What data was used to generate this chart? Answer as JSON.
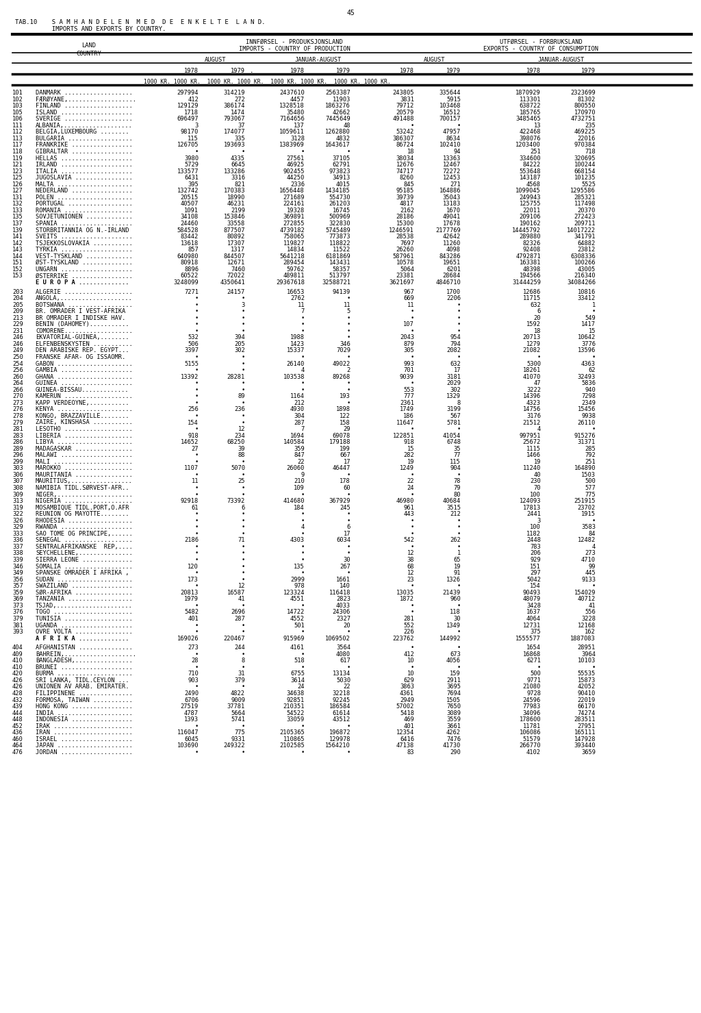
{
  "page_number": "45",
  "title_line1": "TAB.10    S A M H A N D E L E N  M E D  D E  E N K E L T E  L A N D.",
  "title_line2": "          IMPORTS AND EXPORTS BY COUNTRY.",
  "header_left1": "INNFØRSEL - PRODUKSJONSLAND",
  "header_left2": "IMPORTS - COUNTRY OF PRODUCTION",
  "header_right1": "UTFØRSEL - FORBRUKSLAND",
  "header_right2": "EXPORTS - COUNTRY OF CONSUMPTION",
  "land_label": "LAND",
  "country_label": "COUNTRY",
  "col_headers": [
    "AUGUST",
    "JANUAR-AUGUST",
    "AUGUST",
    "JANUAR-AUGUST"
  ],
  "year_headers": [
    "1978",
    "1979",
    ".",
    "1978",
    "1979",
    "1978",
    "1979",
    "1978",
    "1979"
  ],
  "unit_label": "1000 KR. 1000 KR.  1000 KR. 1000 KR.  1000 KR. 1000 KR.  1000 KR. 1000 KR.",
  "rows": [
    [
      "101",
      "DANMARK ...................",
      "297994",
      "314219",
      "2437610",
      "2563387",
      "243805",
      "335644",
      "1870929",
      "2323699"
    ],
    [
      "102",
      "FÆRØYANE,...................",
      "412",
      "272",
      "4457",
      "11903",
      "3831",
      "5915",
      "113301",
      "81302"
    ],
    [
      "103",
      "FINLAND ...................",
      "129129",
      "386174",
      "1328518",
      "1863276",
      "79712",
      "103468",
      "638722",
      "800550"
    ],
    [
      "105",
      "ISLAND ....................",
      "1718",
      "1474",
      "35480",
      "42662",
      "20579",
      "16512",
      "185765",
      "170970"
    ],
    [
      "106",
      "SVERIGE ...................",
      "696497",
      "793067",
      "7164656",
      "7445649",
      "491488",
      "700157",
      "3485465",
      "4732751"
    ],
    [
      "111",
      "ALBANIA,...................",
      "3",
      "37",
      "137",
      "48",
      "•",
      "•",
      "13",
      "235"
    ],
    [
      "112",
      "BELGIA,LUXEMBOURG ........",
      "98170",
      "174077",
      "1059611",
      "1262880",
      "53242",
      "47957",
      "422468",
      "469225"
    ],
    [
      "113",
      "BULGARIA ..................",
      "115",
      "335",
      "3128",
      "4832",
      "386307",
      "8634",
      "398076",
      "22016"
    ],
    [
      "117",
      "FRANKRIKE .................",
      "126705",
      "193693",
      "1383969",
      "1643617",
      "86724",
      "102410",
      "1203400",
      "970384"
    ],
    [
      "118",
      "GIBRALTAR .................",
      "•",
      "•",
      "•",
      "•",
      "18",
      "94",
      "251",
      "718"
    ],
    [
      "119",
      "HELLAS ....................",
      "3980",
      "4335",
      "27561",
      "37105",
      "38034",
      "13363",
      "334600",
      "320695"
    ],
    [
      "121",
      "IRLAND ....................",
      "5729",
      "6645",
      "46925",
      "62791",
      "12676",
      "12467",
      "84222",
      "100244"
    ],
    [
      "123",
      "ITALIA ....................",
      "133577",
      "133286",
      "902455",
      "973823",
      "74717",
      "72272",
      "553648",
      "668154"
    ],
    [
      "125",
      "JUGOSLAVIA ................",
      "6431",
      "3316",
      "44250",
      "34913",
      "8260",
      "12453",
      "143187",
      "101235"
    ],
    [
      "126",
      "MALTA .....................",
      "395",
      "821",
      "2336",
      "4015",
      "845",
      "271",
      "4568",
      "5525"
    ],
    [
      "127",
      "NEDERLAND .................",
      "132742",
      "170383",
      "1656448",
      "1434185",
      "95185",
      "164886",
      "1099045",
      "1295586"
    ],
    [
      "131",
      "POLEN .....................",
      "20515",
      "18990",
      "271689",
      "554730",
      "39739",
      "35043",
      "249943",
      "285321"
    ],
    [
      "132",
      "PORTUGAL ..................",
      "40507",
      "46231",
      "224161",
      "261203",
      "4817",
      "13183",
      "125755",
      "117498"
    ],
    [
      "133",
      "ROMANIA ...................",
      "1091",
      "2199",
      "19328",
      "16745",
      "2162",
      "1670",
      "22011",
      "20370"
    ],
    [
      "135",
      "SOVJETUNIONEN .............",
      "34108",
      "153846",
      "369891",
      "500969",
      "28186",
      "49041",
      "209106",
      "272423"
    ],
    [
      "137",
      "SPANIA ....................",
      "24460",
      "33558",
      "272855",
      "322830",
      "15300",
      "17678",
      "190162",
      "209711"
    ],
    [
      "139",
      "STORBRITANNIA OG N.-IRLAND",
      "584528",
      "877507",
      "4739182",
      "5745489",
      "1246591",
      "2177769",
      "14445792",
      "14017222"
    ],
    [
      "141",
      "SVEITS ....................",
      "83442",
      "80892",
      "758065",
      "773873",
      "28538",
      "42642",
      "289880",
      "341791"
    ],
    [
      "142",
      "TSJEKKOSLOVAKIA ...........",
      "13618",
      "17307",
      "119827",
      "118822",
      "7697",
      "11260",
      "82326",
      "64882"
    ],
    [
      "143",
      "TYRKIA ....................",
      "857",
      "1317",
      "14834",
      "11522",
      "26260",
      "4098",
      "92408",
      "23812"
    ],
    [
      "144",
      "VEST-TYSKLAND .............",
      "640980",
      "844507",
      "5641218",
      "6181869",
      "587961",
      "843286",
      "4792871",
      "6308336"
    ],
    [
      "151",
      "ØST-TYSKLAND ..............",
      "80918",
      "12671",
      "289454",
      "143431",
      "10578",
      "19651",
      "163381",
      "100266"
    ],
    [
      "152",
      "UNGARN ....................",
      "8896",
      "7460",
      "59762",
      "58357",
      "5064",
      "6201",
      "48398",
      "43005"
    ],
    [
      "153",
      "ØSTERRIKE .................",
      "60522",
      "72022",
      "489811",
      "513797",
      "23381",
      "28684",
      "194566",
      "216340"
    ],
    [
      "",
      "E U R O P A ..............",
      "3248099",
      "4350641",
      "29367618",
      "32588721",
      "3621697",
      "4846710",
      "31444259",
      "34084266"
    ],
    [
      "203",
      "ALGERIE ...................",
      "7271",
      "24157",
      "16653",
      "94139",
      "967",
      "1700",
      "12686",
      "10816"
    ],
    [
      "204",
      "ANGOLA,....................",
      "•",
      "•",
      "2762",
      "•",
      "669",
      "2206",
      "11715",
      "33412"
    ],
    [
      "205",
      "BOTSWANA ..................",
      "•",
      "3",
      "11",
      "11",
      "11",
      "•",
      "632",
      "1"
    ],
    [
      "209",
      "BR. OMRADER I VEST-AFRIKA",
      "•",
      "•",
      "7",
      "5",
      "•",
      "•",
      "6",
      "•"
    ],
    [
      "213",
      "BR OMRADER I INDISKE HAV.",
      "•",
      "•",
      "•",
      "•",
      "•",
      "•",
      "20",
      "549"
    ],
    [
      "229",
      "BENIN (DAHOMEY)...........",
      "•",
      "•",
      "•",
      "•",
      "107",
      "•",
      "1592",
      "1417"
    ],
    [
      "231",
      "COMORENE...................",
      "•",
      "•",
      "•",
      "•",
      "•",
      "•",
      "18",
      "15"
    ],
    [
      "246",
      "EKVATORIAL-GUINEA,........",
      "532",
      "394",
      "1988",
      "•",
      "2043",
      "954",
      "20713",
      "10642"
    ],
    [
      "246",
      "ELFENBENSKYSTEN ...........",
      "506",
      "205",
      "1423",
      "346",
      "879",
      "794",
      "1279",
      "3776"
    ],
    [
      "249",
      "DEN ARABISKE REP. EGYPT...",
      "3397",
      "302",
      "15337",
      "7029",
      "305",
      "2082",
      "21082",
      "13596"
    ],
    [
      "250",
      "FRANSKE AFAR- OG ISSAOMR.",
      "•",
      "•",
      "•",
      "•",
      "•",
      "•",
      "•",
      "•"
    ],
    [
      "254",
      "GABON .....................",
      "5155",
      "•",
      "26140",
      "49022",
      "993",
      "632",
      "5300",
      "4363"
    ],
    [
      "256",
      "GAMBIA ....................",
      "•",
      "•",
      "4",
      "2",
      "701",
      "17",
      "18261",
      "62"
    ],
    [
      "260",
      "GHANA .....................",
      "13392",
      "28281",
      "103538",
      "89268",
      "9039",
      "3181",
      "41070",
      "32493"
    ],
    [
      "264",
      "GUINEA ....................",
      "•",
      "•",
      "•",
      "•",
      "•",
      "2029",
      "47",
      "5836"
    ],
    [
      "266",
      "GUINEA-BISSAU.............",
      "•",
      "•",
      "•",
      "•",
      "553",
      "302",
      "3222",
      "940"
    ],
    [
      "270",
      "KAMERUN ...................",
      "•",
      "89",
      "1164",
      "193",
      "777",
      "1329",
      "14396",
      "7298"
    ],
    [
      "273",
      "KAPP VERDEOYNE,...........",
      "•",
      "•",
      "212",
      "•",
      "2361",
      "8",
      "4323",
      "2349"
    ],
    [
      "276",
      "KENYA .....................",
      "256",
      "236",
      "4930",
      "1898",
      "1749",
      "3199",
      "14756",
      "15456"
    ],
    [
      "278",
      "KONGO, BRAZZAVILLE........",
      "•",
      "•",
      "304",
      "122",
      "186",
      "567",
      "3176",
      "9938"
    ],
    [
      "279",
      "ZAIRE, KINSHASA ...........",
      "154",
      "•",
      "287",
      "158",
      "11647",
      "5781",
      "21512",
      "26110"
    ],
    [
      "281",
      "LESOTHO ...................",
      "•",
      "12",
      "7",
      "29",
      "•",
      "•",
      "4",
      "•"
    ],
    [
      "283",
      "LIBERIA ...................",
      "918",
      "234",
      "1694",
      "69078",
      "122851",
      "41054",
      "997951",
      "915276"
    ],
    [
      "286",
      "LIBYA .....................",
      "14652",
      "68250",
      "140584",
      "179188",
      "918",
      "6748",
      "25672",
      "31371"
    ],
    [
      "289",
      "MADAGASKAR ................",
      "27",
      "39",
      "359",
      "199",
      "15",
      "35",
      "1115",
      "285"
    ],
    [
      "296",
      "MALAWI ....................",
      "•",
      "88",
      "847",
      "667",
      "282",
      "77",
      "1466",
      "792"
    ],
    [
      "299",
      "MALI ......................",
      "•",
      "•",
      "22",
      "17",
      "19",
      "115",
      "19",
      "251"
    ],
    [
      "303",
      "MAROKKO ...................",
      "1107",
      "5070",
      "26060",
      "46447",
      "1249",
      "904",
      "11240",
      "164890"
    ],
    [
      "306",
      "MAURITANIA ................",
      "•",
      "•",
      "9",
      "•",
      "•",
      "•",
      "40",
      "1503"
    ],
    [
      "307",
      "MAURITIUS,.................",
      "11",
      "25",
      "210",
      "178",
      "22",
      "78",
      "230",
      "500"
    ],
    [
      "308",
      "NAMIBIA TIDL.SØRVEST-AFR..",
      "•",
      "•",
      "109",
      "60",
      "24",
      "79",
      "70",
      "577"
    ],
    [
      "309",
      "NIGER,.....................",
      "•",
      "•",
      "•",
      "•",
      "•",
      "80",
      "100",
      "775"
    ],
    [
      "313",
      "NIGERIA ...................",
      "92918",
      "73392",
      "414680",
      "367929",
      "46980",
      "40684",
      "124093",
      "251915"
    ],
    [
      "319",
      "MOSAMBIQUE TIDL.PORT,O.AFR",
      "61",
      "6",
      "184",
      "245",
      "961",
      "3515",
      "17813",
      "23702"
    ],
    [
      "322",
      "REUNION OG MAYOTTE........",
      "•",
      "•",
      "•",
      "•",
      "443",
      "212",
      "2441",
      "1915"
    ],
    [
      "326",
      "RHODESIA ..................",
      "•",
      "•",
      "•",
      "•",
      "•",
      "•",
      "3",
      "•"
    ],
    [
      "329",
      "RWANDA ....................",
      "•",
      "•",
      "4",
      "6",
      "•",
      "•",
      "100",
      "3583"
    ],
    [
      "333",
      "SAO TOME OG PRINCIPE,......",
      "•",
      "•",
      "•",
      "17",
      "•",
      "•",
      "1182",
      "84"
    ],
    [
      "336",
      "SENEGAL ...................",
      "2186",
      "71",
      "4303",
      "6034",
      "542",
      "262",
      "2448",
      "12482"
    ],
    [
      "337",
      "SENTRALAFRIKANSKE  REP,....",
      "•",
      "•",
      "•",
      "•",
      "•",
      "•",
      "783",
      "4"
    ],
    [
      "338",
      "SEYCHELLENE,...............",
      "•",
      "•",
      "•",
      "•",
      "12",
      "1",
      "206",
      "273"
    ],
    [
      "339",
      "SIERRA LEONE ..............",
      "•",
      "•",
      "•",
      "30",
      "38",
      "65",
      "929",
      "4710"
    ],
    [
      "346",
      "SOMALIA ...................",
      "120",
      "•",
      "135",
      "267",
      "68",
      "19",
      "151",
      "99"
    ],
    [
      "349",
      "SPANSKE OMRADER I AFRIKA ,",
      "•",
      "•",
      "•",
      "•",
      "12",
      "91",
      "297",
      "445"
    ],
    [
      "356",
      "SUDAN .....................",
      "173",
      "•",
      "2999",
      "1661",
      "23",
      "1326",
      "5042",
      "9133"
    ],
    [
      "357",
      "SWAZILAND .................",
      "•",
      "12",
      "978",
      "140",
      "•",
      "•",
      "154",
      "•"
    ],
    [
      "359",
      "SØR-AFRIKA ................",
      "20813",
      "16587",
      "123324",
      "116418",
      "13035",
      "21439",
      "90493",
      "154029"
    ],
    [
      "369",
      "TANZANIA ..................",
      "1979",
      "41",
      "4551",
      "2823",
      "1872",
      "960",
      "48079",
      "40712"
    ],
    [
      "373",
      "TSJAD,.....................",
      "•",
      "•",
      "•",
      "4033",
      "•",
      "•",
      "3428",
      "41"
    ],
    [
      "376",
      "TOGO ......................",
      "5482",
      "2696",
      "14722",
      "24306",
      "•",
      "118",
      "1637",
      "556"
    ],
    [
      "379",
      "TUNISIA ...................",
      "401",
      "287",
      "4552",
      "2327",
      "281",
      "30",
      "4064",
      "3228"
    ],
    [
      "381",
      "UGANDA ....................",
      "•",
      "•",
      "501",
      "20",
      "552",
      "1349",
      "12731",
      "12168"
    ],
    [
      "393",
      "OVRE VOLTA ................",
      "•",
      "•",
      "•",
      "•",
      "226",
      "•",
      "375",
      "162"
    ],
    [
      "",
      "A F R I K A ..............",
      "169026",
      "220467",
      "915969",
      "1069502",
      "223762",
      "144992",
      "1555577",
      "1887083"
    ],
    [
      "404",
      "AFGHANISTAN ...............",
      "273",
      "244",
      "4161",
      "3564",
      "•",
      "•",
      "1654",
      "28951"
    ],
    [
      "409",
      "BAHREIN,....................",
      "•",
      "•",
      "•",
      "4080",
      "412",
      "673",
      "16868",
      "3964"
    ],
    [
      "410",
      "BANGLADESH,................",
      "28",
      "8",
      "518",
      "617",
      "10",
      "4056",
      "6271",
      "10103"
    ],
    [
      "410",
      "BRUNEI ....................",
      "•",
      "•",
      "•",
      "•",
      "•",
      "•",
      "•",
      "•"
    ],
    [
      "420",
      "BURMA .....................",
      "710",
      "31",
      "6755",
      "13134",
      "10",
      "159",
      "500",
      "55535"
    ],
    [
      "426",
      "SRI LANKA, TIDL.CEYLON ...",
      "903",
      "379",
      "3614",
      "5030",
      "629",
      "2911",
      "9771",
      "15873"
    ],
    [
      "426",
      "UNIONEN AV ARAB. EMIRATER.",
      "•",
      "•",
      "24",
      "22",
      "3863",
      "3695",
      "21080",
      "42052"
    ],
    [
      "428",
      "FILIPPINENE ...............",
      "2490",
      "4822",
      "34638",
      "32218",
      "4361",
      "7694",
      "9728",
      "90410"
    ],
    [
      "432",
      "FORMOSA, TAIWAN ...........",
      "6706",
      "9009",
      "92851",
      "92245",
      "2949",
      "1505",
      "24596",
      "22019"
    ],
    [
      "439",
      "HONG KONG .................",
      "27519",
      "37781",
      "210351",
      "186584",
      "57002",
      "7650",
      "77983",
      "66170"
    ],
    [
      "444",
      "INDIA .....................",
      "4787",
      "5664",
      "54522",
      "61614",
      "5418",
      "3089",
      "34096",
      "74274"
    ],
    [
      "448",
      "INDONESIA .................",
      "1393",
      "5741",
      "33059",
      "43512",
      "469",
      "3559",
      "178600",
      "283511"
    ],
    [
      "452",
      "IRAK ......................",
      "•",
      "•",
      "•",
      "•",
      "401",
      "3661",
      "11781",
      "27951"
    ],
    [
      "436",
      "IRAN ......................",
      "116047",
      "775",
      "2105365",
      "196872",
      "12354",
      "4262",
      "106086",
      "165111"
    ],
    [
      "460",
      "ISRAEL ....................",
      "6045",
      "9331",
      "110865",
      "129978",
      "6416",
      "7476",
      "51579",
      "147928"
    ],
    [
      "464",
      "JAPAN .....................",
      "103690",
      "249322",
      "2102585",
      "1564210",
      "47138",
      "41730",
      "266770",
      "393440"
    ],
    [
      "476",
      "JORDAN ....................",
      "•",
      "•",
      "•",
      "•",
      "83",
      "290",
      "4102",
      "3659"
    ]
  ],
  "bg_color": "#ffffff",
  "text_color": "#000000"
}
